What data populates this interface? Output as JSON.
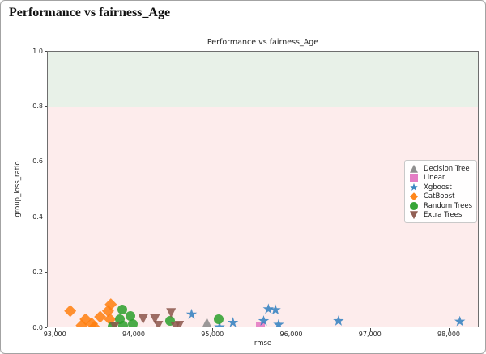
{
  "page": {
    "title": "Performance vs fairness_Age"
  },
  "chart_data": {
    "type": "scatter",
    "title": "Performance vs fairness_Age",
    "xlabel": "rmse",
    "ylabel": "group_loss_ratio",
    "xlim": [
      92900,
      98380
    ],
    "ylim": [
      0,
      1
    ],
    "grid": false,
    "legend_position": "center-right",
    "x_ticks": [
      {
        "value": 93000,
        "label": "93,000"
      },
      {
        "value": 94000,
        "label": "94,000"
      },
      {
        "value": 95000,
        "label": "95,000"
      },
      {
        "value": 96000,
        "label": "96,000"
      },
      {
        "value": 97000,
        "label": "97,000"
      },
      {
        "value": 98000,
        "label": "98,000"
      }
    ],
    "y_ticks": [
      {
        "value": 0.0,
        "label": "0.0"
      },
      {
        "value": 0.2,
        "label": "0.2"
      },
      {
        "value": 0.4,
        "label": "0.4"
      },
      {
        "value": 0.6,
        "label": "0.6"
      },
      {
        "value": 0.8,
        "label": "0.8"
      },
      {
        "value": 1.0,
        "label": "1.0"
      }
    ],
    "bands": [
      {
        "from": 0.8,
        "to": 1.0,
        "color": "#e8f1e8"
      },
      {
        "from": 0.0,
        "to": 0.8,
        "color": "#fdecec"
      }
    ],
    "series": [
      {
        "name": "Decision Tree",
        "marker": "triangle-up",
        "color": "#8a8a8a",
        "points": [
          [
            94920,
            0.02
          ]
        ]
      },
      {
        "name": "Linear",
        "marker": "square",
        "color": "#e377c2",
        "points": [
          [
            95600,
            0.006
          ]
        ]
      },
      {
        "name": "Xgboost",
        "marker": "star",
        "color": "#2f7fbf",
        "points": [
          [
            94725,
            0.05
          ],
          [
            95080,
            0.004
          ],
          [
            95250,
            0.02
          ],
          [
            95640,
            0.026
          ],
          [
            95700,
            0.069
          ],
          [
            95790,
            0.066
          ],
          [
            95830,
            0.013
          ],
          [
            96590,
            0.026
          ],
          [
            98130,
            0.024
          ]
        ]
      },
      {
        "name": "CatBoost",
        "marker": "diamond",
        "color": "#ff7f0e",
        "points": [
          [
            93185,
            0.062
          ],
          [
            93330,
            0.01
          ],
          [
            93380,
            0.032
          ],
          [
            93460,
            0.016
          ],
          [
            93490,
            0.004
          ],
          [
            93565,
            0.041
          ],
          [
            93665,
            0.062
          ],
          [
            93700,
            0.086
          ],
          [
            93690,
            0.032
          ]
        ]
      },
      {
        "name": "Random Trees",
        "marker": "circle",
        "color": "#2ca02c",
        "points": [
          [
            93720,
            0.007
          ],
          [
            93820,
            0.032
          ],
          [
            93845,
            0.067
          ],
          [
            93855,
            0.01
          ],
          [
            93950,
            0.044
          ],
          [
            93980,
            0.016
          ],
          [
            94455,
            0.026
          ],
          [
            95070,
            0.032
          ]
        ]
      },
      {
        "name": "Extra Trees",
        "marker": "triangle-down",
        "color": "#8c564b",
        "points": [
          [
            93750,
            0.005
          ],
          [
            94110,
            0.032
          ],
          [
            94260,
            0.032
          ],
          [
            94305,
            0.01
          ],
          [
            94465,
            0.055
          ],
          [
            94520,
            0.005
          ],
          [
            94570,
            0.01
          ]
        ]
      }
    ]
  }
}
